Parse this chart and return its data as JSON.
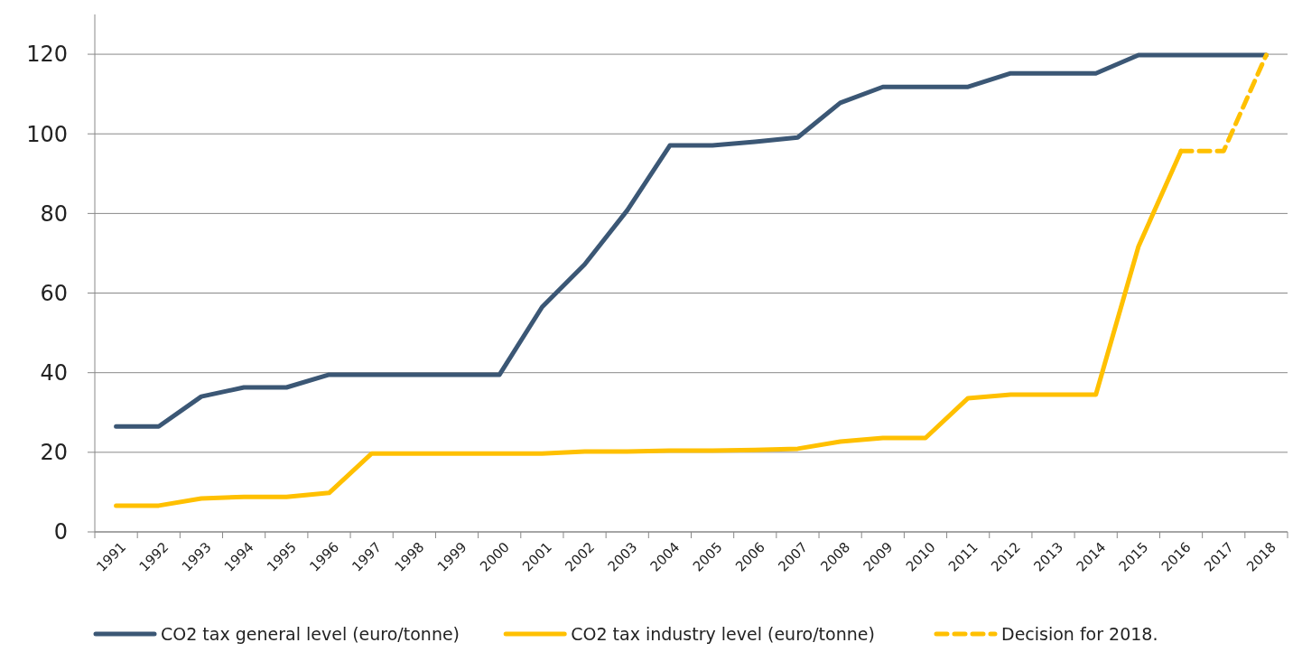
{
  "chart_data": {
    "type": "line",
    "categories": [
      "1991",
      "1992",
      "1993",
      "1994",
      "1995",
      "1996",
      "1997",
      "1998",
      "1999",
      "2000",
      "2001",
      "2002",
      "2003",
      "2004",
      "2005",
      "2006",
      "2007",
      "2008",
      "2009",
      "2010",
      "2011",
      "2012",
      "2013",
      "2014",
      "2015",
      "2016",
      "2017",
      "2018"
    ],
    "series": [
      {
        "name": "CO2 tax general level (euro/tonne)",
        "color": "#3b5775",
        "values": [
          26.5,
          26.5,
          34,
          36.3,
          36.3,
          39.5,
          39.5,
          39.5,
          39.5,
          39.5,
          56.5,
          67.2,
          80.8,
          97.1,
          97.1,
          98,
          99.1,
          107.8,
          111.8,
          111.8,
          111.8,
          115.2,
          115.2,
          115.2,
          119.8,
          119.8,
          119.8,
          119.8
        ]
      },
      {
        "name": "CO2 tax industry level  (euro/tonne)",
        "color": "#ffc000",
        "values": [
          6.6,
          6.6,
          8.4,
          8.8,
          8.8,
          9.8,
          19.7,
          19.7,
          19.7,
          19.7,
          19.7,
          20.2,
          20.2,
          20.4,
          20.4,
          20.6,
          20.9,
          22.7,
          23.6,
          23.6,
          33.6,
          34.5,
          34.5,
          34.5,
          71.7,
          95.7,
          null,
          null
        ]
      },
      {
        "name": "Decision for 2018.",
        "color": "#ffc000",
        "line_style": "dashed",
        "values": [
          null,
          null,
          null,
          null,
          null,
          null,
          null,
          null,
          null,
          null,
          null,
          null,
          null,
          null,
          null,
          null,
          null,
          null,
          null,
          null,
          null,
          null,
          null,
          null,
          null,
          95.7,
          95.7,
          119.8
        ]
      }
    ],
    "ylim": [
      0,
      130
    ],
    "yticks": [
      0,
      20,
      40,
      60,
      80,
      100,
      120
    ],
    "grid": "y",
    "legend": "bottom",
    "line_style": "solid"
  }
}
